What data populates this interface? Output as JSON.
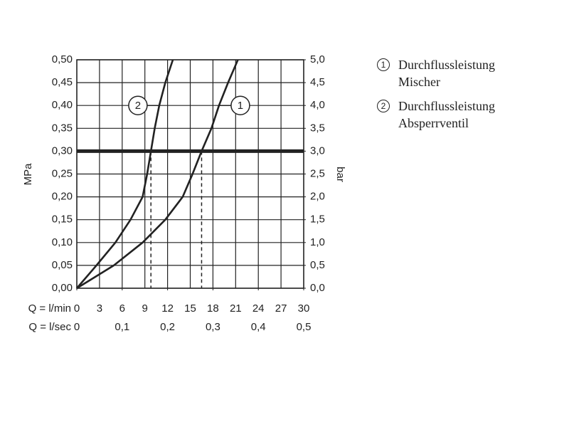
{
  "chart_data": {
    "type": "line",
    "x_label": "Q = l/min",
    "x2_label": "Q = l/sec",
    "y_label": "MPa",
    "y2_label": "bar",
    "xlim": [
      0,
      30
    ],
    "xticks": [
      0,
      3,
      6,
      9,
      12,
      15,
      18,
      21,
      24,
      27,
      30
    ],
    "x2lim": [
      0,
      0.5
    ],
    "x2ticks": [
      0,
      {
        "value": 0.1,
        "label": "0,1"
      },
      {
        "value": 0.2,
        "label": "0,2"
      },
      {
        "value": 0.3,
        "label": "0,3"
      },
      {
        "value": 0.4,
        "label": "0,4"
      },
      {
        "value": 0.5,
        "label": "0,5"
      }
    ],
    "ylim": [
      0,
      0.5
    ],
    "yticks": [
      {
        "value": 0,
        "label": "0,00"
      },
      {
        "value": 0.05,
        "label": "0,05"
      },
      {
        "value": 0.1,
        "label": "0,10"
      },
      {
        "value": 0.15,
        "label": "0,15"
      },
      {
        "value": 0.2,
        "label": "0,20"
      },
      {
        "value": 0.25,
        "label": "0,25"
      },
      {
        "value": 0.3,
        "label": "0,30"
      },
      {
        "value": 0.35,
        "label": "0,35"
      },
      {
        "value": 0.4,
        "label": "0,40"
      },
      {
        "value": 0.45,
        "label": "0,45"
      },
      {
        "value": 0.5,
        "label": "0,50"
      }
    ],
    "y2lim": [
      0,
      5
    ],
    "y2ticks": [
      {
        "value": 0,
        "label": "0,0"
      },
      {
        "value": 0.5,
        "label": "0,5"
      },
      {
        "value": 1,
        "label": "1,0"
      },
      {
        "value": 1.5,
        "label": "1,5"
      },
      {
        "value": 2,
        "label": "2,0"
      },
      {
        "value": 2.5,
        "label": "2,5"
      },
      {
        "value": 3,
        "label": "3,0"
      },
      {
        "value": 3.5,
        "label": "3,5"
      },
      {
        "value": 4,
        "label": "4,0"
      },
      {
        "value": 4.5,
        "label": "4,5"
      },
      {
        "value": 5,
        "label": "5,0"
      }
    ],
    "grid": true,
    "reference_line": 0.3,
    "reference_crossings": [
      16.5,
      9.8
    ],
    "series": [
      {
        "name": "Durchflussleistung Mischer",
        "marker": "1",
        "color": "#222222",
        "x": [
          0,
          4.9,
          8.7,
          11.7,
          14.0,
          15.3,
          16.5,
          17.8,
          18.8,
          20.0,
          21.3
        ],
        "values": [
          0,
          0.05,
          0.1,
          0.15,
          0.2,
          0.25,
          0.3,
          0.35,
          0.4,
          0.45,
          0.5
        ]
      },
      {
        "name": "Durchflussleistung Absperrventil",
        "marker": "2",
        "color": "#222222",
        "x": [
          0,
          2.6,
          5.1,
          7.1,
          8.7,
          9.3,
          9.8,
          10.3,
          10.9,
          11.7,
          12.7
        ],
        "values": [
          0,
          0.05,
          0.1,
          0.15,
          0.2,
          0.25,
          0.3,
          0.35,
          0.4,
          0.45,
          0.5
        ]
      }
    ]
  }
}
